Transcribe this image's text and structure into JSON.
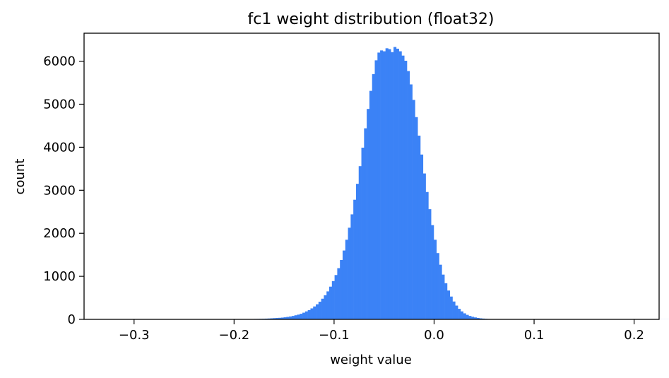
{
  "chart_data": {
    "type": "bar",
    "title": "fc1 weight distribution (float32)",
    "xlabel": "weight value",
    "ylabel": "count",
    "xlim": [
      -0.35,
      0.225
    ],
    "ylim": [
      0,
      6650
    ],
    "xticks": [
      {
        "value": -0.3,
        "label": "−0.3"
      },
      {
        "value": -0.2,
        "label": "−0.2"
      },
      {
        "value": -0.1,
        "label": "−0.1"
      },
      {
        "value": 0.0,
        "label": "0.0"
      },
      {
        "value": 0.1,
        "label": "0.1"
      },
      {
        "value": 0.2,
        "label": "0.2"
      }
    ],
    "yticks": [
      {
        "value": 0,
        "label": "0"
      },
      {
        "value": 1000,
        "label": "1000"
      },
      {
        "value": 2000,
        "label": "2000"
      },
      {
        "value": 3000,
        "label": "3000"
      },
      {
        "value": 4000,
        "label": "4000"
      },
      {
        "value": 5000,
        "label": "5000"
      },
      {
        "value": 6000,
        "label": "6000"
      }
    ],
    "bar_color": "#3b82f6",
    "bins": {
      "start": -0.33,
      "width": 0.00268,
      "counts": [
        1,
        1,
        1,
        1,
        1,
        1,
        1,
        1,
        1,
        1,
        1,
        1,
        1,
        1,
        1,
        1,
        1,
        1,
        1,
        1,
        1,
        1,
        1,
        1,
        1,
        1,
        1,
        1,
        1,
        1,
        1,
        1,
        1,
        1,
        1,
        1,
        1,
        1,
        1,
        1,
        1,
        1,
        2,
        2,
        2,
        2,
        3,
        3,
        3,
        4,
        4,
        5,
        5,
        6,
        7,
        8,
        9,
        10,
        12,
        14,
        17,
        20,
        24,
        28,
        32,
        36,
        41,
        48,
        57,
        67,
        80,
        95,
        110,
        130,
        155,
        185,
        215,
        255,
        300,
        350,
        410,
        480,
        560,
        650,
        760,
        890,
        1030,
        1190,
        1380,
        1600,
        1850,
        2130,
        2440,
        2780,
        3150,
        3560,
        3990,
        4440,
        4890,
        5310,
        5700,
        6020,
        6200,
        6250,
        6230,
        6300,
        6280,
        6210,
        6330,
        6290,
        6230,
        6130,
        6010,
        5770,
        5460,
        5100,
        4700,
        4270,
        3830,
        3390,
        2960,
        2560,
        2190,
        1850,
        1540,
        1270,
        1040,
        840,
        670,
        530,
        415,
        320,
        245,
        185,
        140,
        105,
        80,
        60,
        45,
        33,
        24,
        18,
        13,
        9,
        7,
        5,
        4,
        3,
        2,
        2,
        1,
        1,
        1,
        1,
        1,
        1,
        1,
        1,
        1,
        1,
        1,
        1,
        1,
        1,
        1,
        1,
        1,
        1,
        1,
        1,
        1,
        1,
        1,
        1,
        1,
        1,
        1,
        1,
        1,
        1,
        1,
        1,
        1,
        1,
        1,
        1,
        1,
        1,
        1,
        1,
        1,
        1,
        1,
        1,
        1,
        1,
        1,
        1,
        1,
        1,
        1,
        1,
        1,
        1,
        1,
        1,
        1,
        1,
        1,
        1,
        1,
        1,
        1,
        1,
        1
      ]
    }
  }
}
